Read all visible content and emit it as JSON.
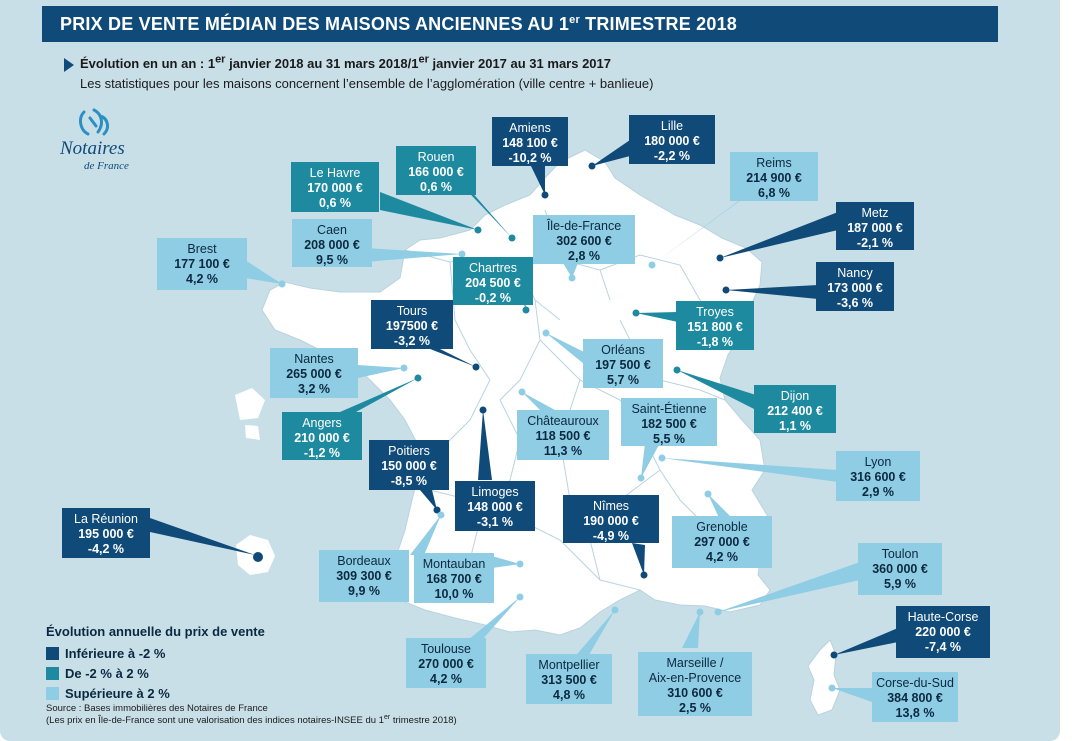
{
  "title": {
    "main": "PRIX DE VENTE MÉDIAN DES MAISONS ANCIENNES AU 1",
    "sup": "er",
    "end": " TRIMESTRE 2018"
  },
  "subtitle": {
    "bold": "Évolution en un an :",
    "p1": " 1",
    "s1": "er",
    "p2": " janvier 2018 au 31 mars 2018/1",
    "s2": "er",
    "p3": " janvier 2017 au 31 mars 2017",
    "line2": "Les statistiques pour les maisons concernent l’ensemble de l’agglomération (ville centre + banlieue)"
  },
  "logo": {
    "name": "Notaires",
    "sub": "de France"
  },
  "colors": {
    "dark": "#0f4a78",
    "mid": "#1d8aa0",
    "light": "#8fcde4",
    "map": "#ffffff",
    "background": "#c9dfe8"
  },
  "cities": {
    "amiens": {
      "name": "Amiens",
      "price": "148 100 €",
      "evo": "-10,2 %"
    },
    "lille": {
      "name": "Lille",
      "price": "180 000 €",
      "evo": "-2,2 %"
    },
    "rouen": {
      "name": "Rouen",
      "price": "166 000 €",
      "evo": "0,6 %"
    },
    "lehavre": {
      "name": "Le Havre",
      "price": "170 000 €",
      "evo": "0,6 %"
    },
    "reims": {
      "name": "Reims",
      "price": "214 900 €",
      "evo": "6,8 %"
    },
    "caen": {
      "name": "Caen",
      "price": "208 000 €",
      "evo": "9,5 %"
    },
    "idf": {
      "name": "Île-de-France",
      "price": "302 600 €",
      "evo": "2,8 %"
    },
    "metz": {
      "name": "Metz",
      "price": "187 000 €",
      "evo": "-2,1 %"
    },
    "brest": {
      "name": "Brest",
      "price": "177 100 €",
      "evo": "4,2 %"
    },
    "chartres": {
      "name": "Chartres",
      "price": "204 500 €",
      "evo": "-0,2 %"
    },
    "nancy": {
      "name": "Nancy",
      "price": "173 000 €",
      "evo": "-3,6 %"
    },
    "tours": {
      "name": "Tours",
      "price": "197500 €",
      "evo": "-3,2 %"
    },
    "troyes": {
      "name": "Troyes",
      "price": "151  800 €",
      "evo": "-1,8 %"
    },
    "nantes": {
      "name": "Nantes",
      "price": "265 000  €",
      "evo": "3,2 %"
    },
    "orleans": {
      "name": "Orléans",
      "price": "197 500 €",
      "evo": "5,7 %"
    },
    "dijon": {
      "name": "Dijon",
      "price": "212 400 €",
      "evo": "1,1 %"
    },
    "angers": {
      "name": "Angers",
      "price": "210 000 €",
      "evo": "-1,2 %"
    },
    "stetienne": {
      "name": "Saint-Étienne",
      "price": "182 500 €",
      "evo": "5,5 %"
    },
    "chateauroux": {
      "name": "Châteauroux",
      "price": "118 500 €",
      "evo": "11,3 %"
    },
    "poitiers": {
      "name": "Poitiers",
      "price": "150 000 €",
      "evo": "-8,5 %"
    },
    "lyon": {
      "name": "Lyon",
      "price": "316 600 €",
      "evo": "2,9 %"
    },
    "lareunion": {
      "name": "La Réunion",
      "price": "195 000 €",
      "evo": "-4,2 %"
    },
    "limoges": {
      "name": "Limoges",
      "price": "148 000 €",
      "evo": "-3,1 %"
    },
    "nimes": {
      "name": "Nîmes",
      "price": "190 000 €",
      "evo": "-4,9 %"
    },
    "grenoble": {
      "name": "Grenoble",
      "price": "297 000  €",
      "evo": "4,2 %"
    },
    "bordeaux": {
      "name": "Bordeaux",
      "price": "309 300 €",
      "evo": "9,9 %"
    },
    "montauban": {
      "name": "Montauban",
      "price": "168 700  €",
      "evo": "10,0 %"
    },
    "toulon": {
      "name": "Toulon",
      "price": "360 000  €",
      "evo": "5,9 %"
    },
    "hautecorse": {
      "name": "Haute-Corse",
      "price": "220 000 €",
      "evo": "-7,4 %"
    },
    "toulouse": {
      "name": "Toulouse",
      "price": "270 000 €",
      "evo": "4,2 %"
    },
    "montpellier": {
      "name": "Montpellier",
      "price": "313 500 €",
      "evo": "4,8 %"
    },
    "marseille": {
      "name": "Marseille /",
      "name2": "Aix-en-Provence",
      "price": "310 600 €",
      "evo": "2,5 %"
    },
    "corsedusud": {
      "name": "Corse-du-Sud",
      "price": "384 800 €",
      "evo": "13,8 %"
    }
  },
  "legend": {
    "title": "Évolution annuelle du prix de vente",
    "items": [
      "Inférieure à -2 %",
      "De -2 % à 2 %",
      "Supérieure à 2 %"
    ]
  },
  "source": {
    "line1": "Source : Bases immobilières des Notaires de France",
    "line2a": "(Les prix en Île-de-France sont une valorisation des indices notaires-INSEE du 1",
    "line2s": "er",
    "line2b": " trimestre 2018)"
  }
}
